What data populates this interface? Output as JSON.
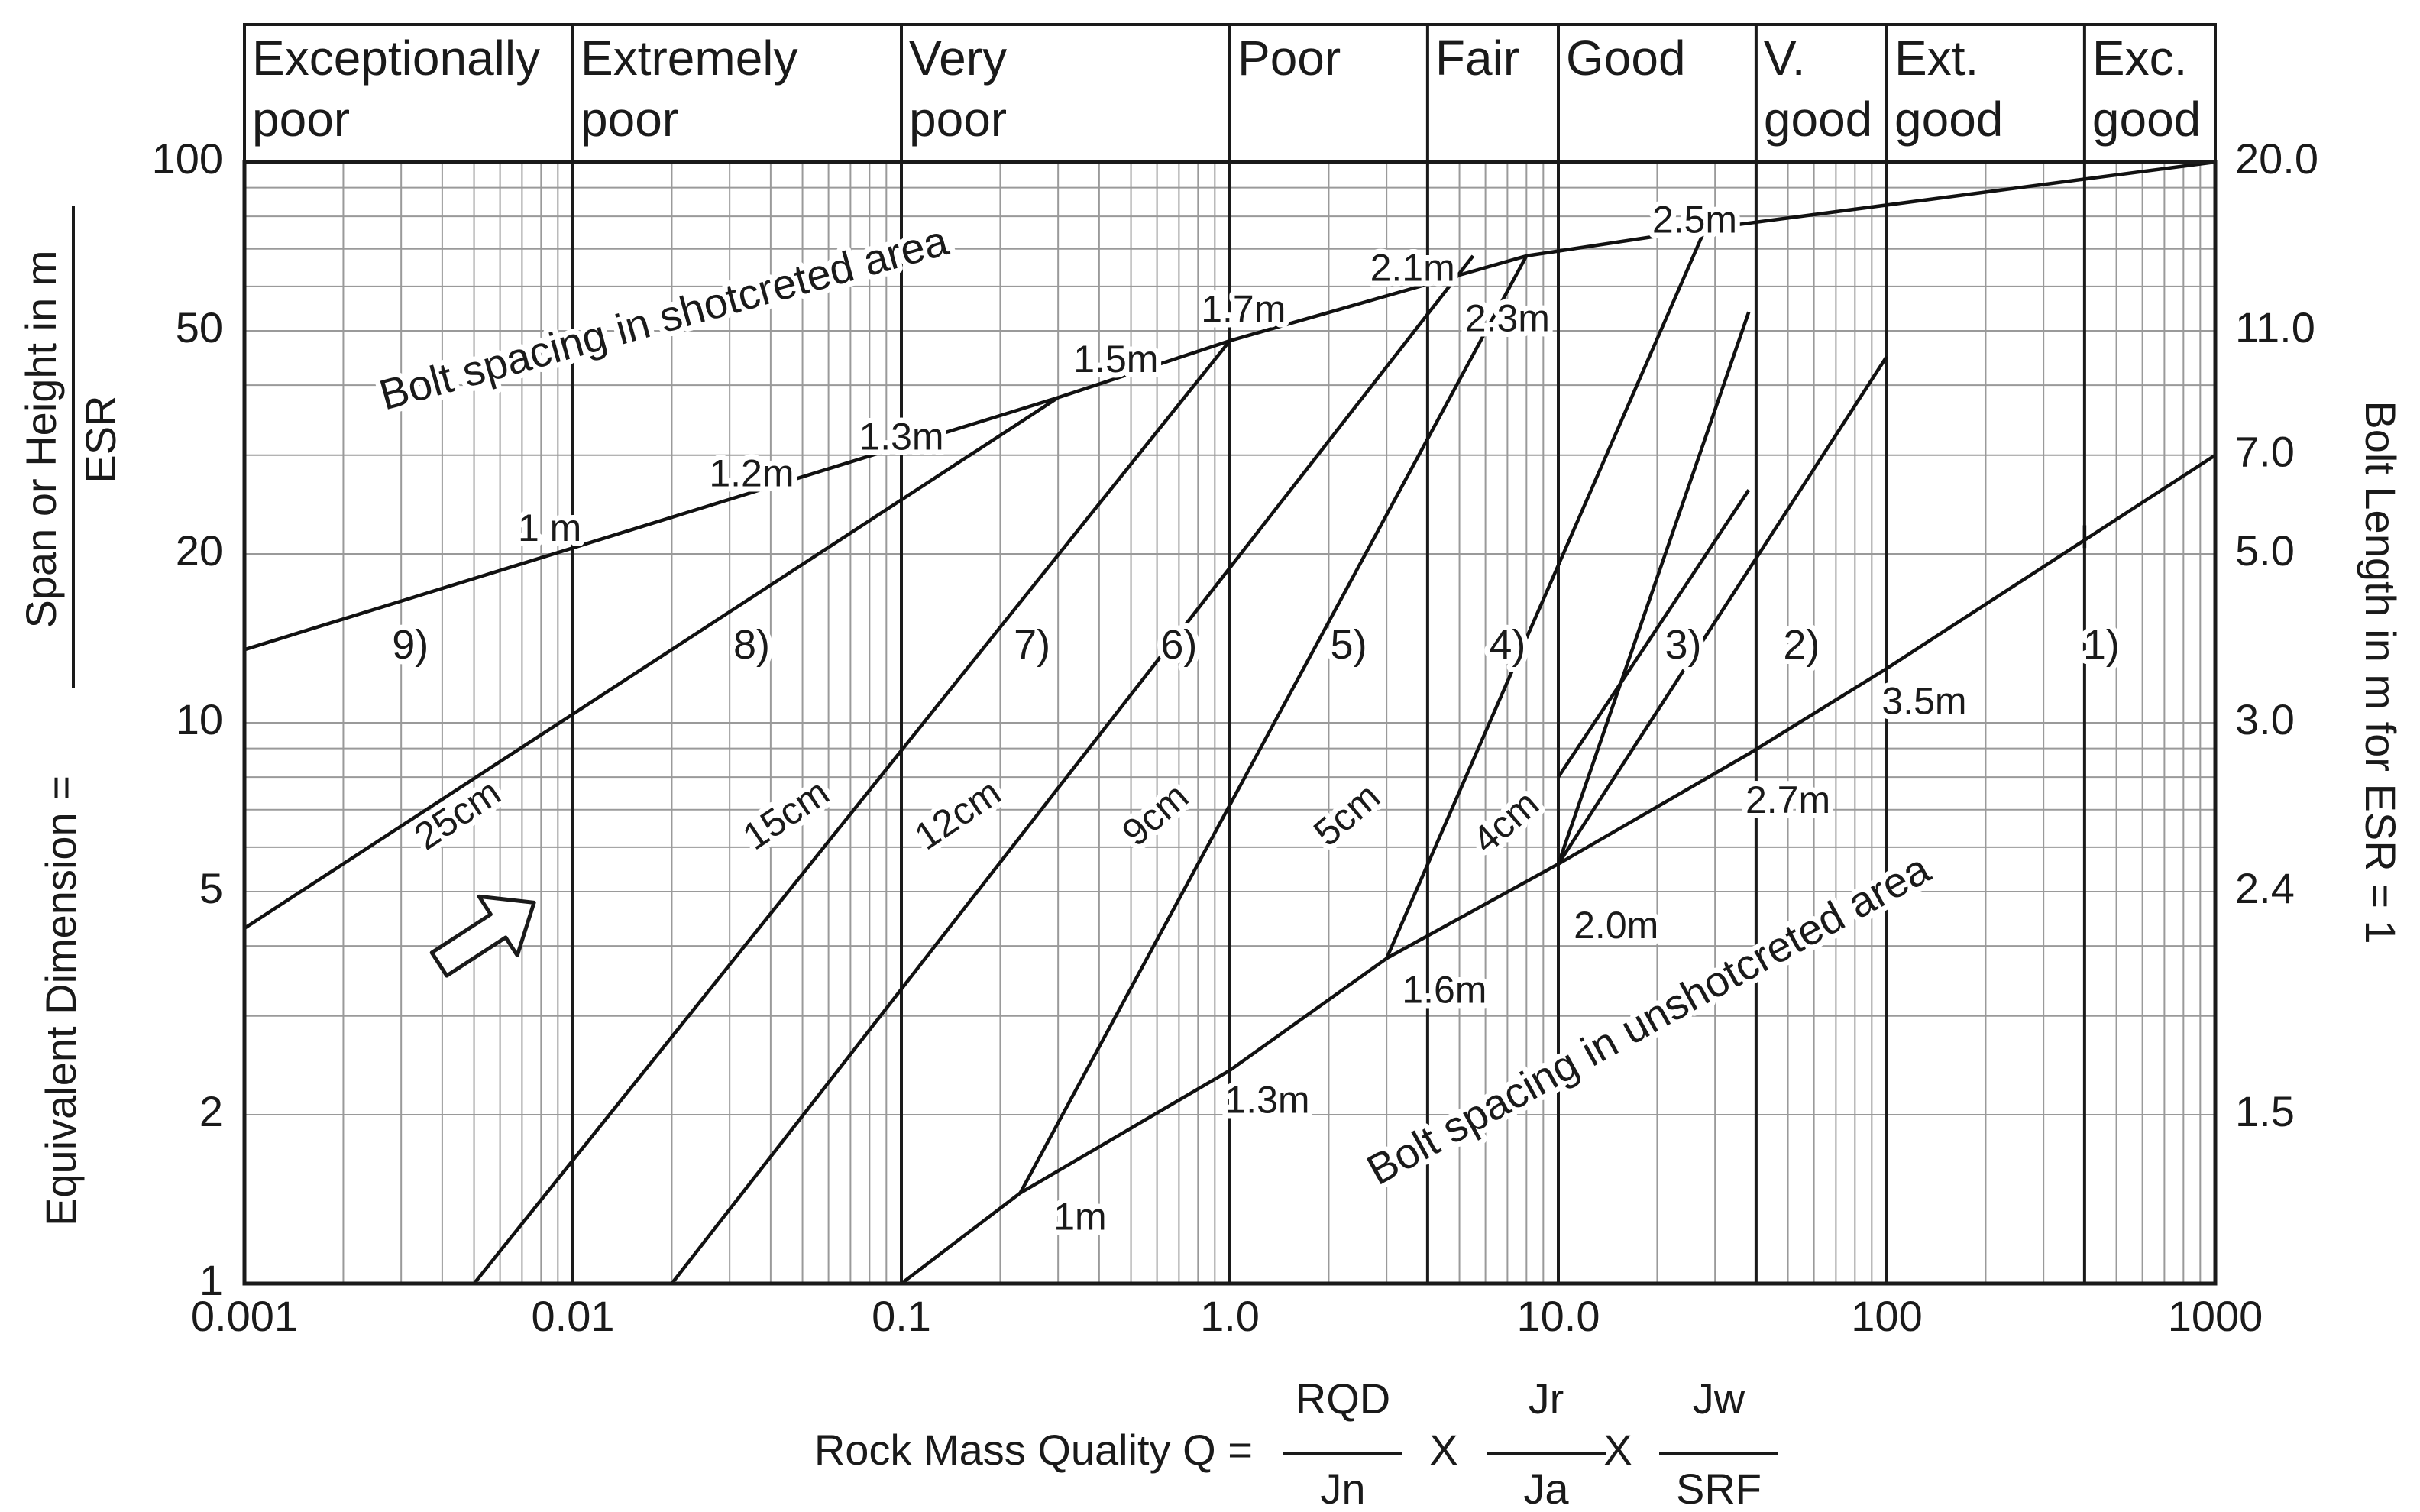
{
  "chart_data": {
    "type": "line",
    "x_scale": "log",
    "y_scale": "log",
    "xlim": [
      0.001,
      1000
    ],
    "ylim": [
      1,
      100
    ],
    "grid": true,
    "legend": "none",
    "rock_mass_classes": [
      {
        "label_line1": "Exceptionally",
        "label_line2": "poor",
        "q_min": 0.001,
        "q_max": 0.01
      },
      {
        "label_line1": "Extremely",
        "label_line2": "poor",
        "q_min": 0.01,
        "q_max": 0.1
      },
      {
        "label_line1": "Very",
        "label_line2": "poor",
        "q_min": 0.1,
        "q_max": 1.0
      },
      {
        "label_line1": "Poor",
        "label_line2": "",
        "q_min": 1.0,
        "q_max": 4.0
      },
      {
        "label_line1": "Fair",
        "label_line2": "",
        "q_min": 4.0,
        "q_max": 10.0
      },
      {
        "label_line1": "Good",
        "label_line2": "",
        "q_min": 10.0,
        "q_max": 40.0
      },
      {
        "label_line1": "V.",
        "label_line2": "good",
        "q_min": 40.0,
        "q_max": 100.0
      },
      {
        "label_line1": "Ext.",
        "label_line2": "good",
        "q_min": 100.0,
        "q_max": 400.0
      },
      {
        "label_line1": "Exc.",
        "label_line2": "good",
        "q_min": 400.0,
        "q_max": 1000.0
      }
    ],
    "x_ticks": [
      {
        "value": 0.001,
        "label": "0.001"
      },
      {
        "value": 0.01,
        "label": "0.01"
      },
      {
        "value": 0.1,
        "label": "0.1"
      },
      {
        "value": 1.0,
        "label": "1.0"
      },
      {
        "value": 10.0,
        "label": "10.0"
      },
      {
        "value": 100,
        "label": "100"
      },
      {
        "value": 1000,
        "label": "1000"
      }
    ],
    "y_ticks": [
      {
        "value": 100,
        "label": "100"
      },
      {
        "value": 50,
        "label": "50"
      },
      {
        "value": 20,
        "label": "20"
      },
      {
        "value": 10,
        "label": "10"
      },
      {
        "value": 5,
        "label": "5"
      },
      {
        "value": 2,
        "label": "2"
      },
      {
        "value": 1,
        "label": "1"
      }
    ],
    "y2_ticks": [
      {
        "value": 100,
        "label": "20.0"
      },
      {
        "value": 50,
        "label": "11.0"
      },
      {
        "value": 30,
        "label": "7.0"
      },
      {
        "value": 20,
        "label": "5.0"
      },
      {
        "value": 10,
        "label": "3.0"
      },
      {
        "value": 5,
        "label": "2.4"
      },
      {
        "value": 2,
        "label": "1.5"
      }
    ],
    "xlabel": {
      "prefix": "Rock Mass Quality Q =",
      "f1_num": "RQD",
      "f1_den": "Jn",
      "times": "X",
      "f2_num": "Jr",
      "f2_den": "Ja",
      "f3_num": "Jw",
      "f3_den": "SRF"
    },
    "ylabel": {
      "text": "Equivalent Dimension =",
      "num": "Span or Height in m",
      "den": "ESR"
    },
    "y2label": "Bolt Length in m for ESR = 1",
    "series": [
      {
        "points": [
          [
            0.001,
            13.5
          ],
          [
            0.3,
            38
          ],
          [
            1.0,
            48
          ],
          [
            8.0,
            68
          ],
          [
            28,
            76
          ],
          [
            1000,
            100
          ]
        ]
      },
      {
        "points": [
          [
            0.001,
            4.3
          ],
          [
            0.3,
            38
          ]
        ]
      },
      {
        "points": [
          [
            0.005,
            1
          ],
          [
            1.0,
            48
          ]
        ]
      },
      {
        "points": [
          [
            0.02,
            1
          ],
          [
            5.5,
            68
          ]
        ]
      },
      {
        "points": [
          [
            0.1,
            1
          ],
          [
            0.23,
            1.45
          ],
          [
            1.0,
            2.4
          ],
          [
            3.0,
            3.8
          ],
          [
            10,
            5.6
          ],
          [
            38,
            8.8
          ],
          [
            100,
            12.5
          ],
          [
            1000,
            30
          ]
        ]
      },
      {
        "points": [
          [
            0.23,
            1.45
          ],
          [
            8.0,
            68
          ]
        ]
      },
      {
        "points": [
          [
            3.0,
            3.8
          ],
          [
            28,
            76
          ]
        ]
      },
      {
        "points": [
          [
            10,
            5.6
          ],
          [
            38,
            54
          ]
        ]
      },
      {
        "points": [
          [
            10,
            5.6
          ],
          [
            100,
            45
          ]
        ]
      },
      {
        "points": [
          [
            10,
            8.0
          ],
          [
            38,
            26
          ]
        ]
      },
      {
        "points": [
          [
            400,
            20.5
          ],
          [
            400,
            22.5
          ]
        ]
      }
    ],
    "upper_label": "Bolt spacing in shotcreted area",
    "lower_label": "Bolt spacing in unshotcreted area",
    "upper_spacing_labels": [
      {
        "text": "1 m",
        "q": 0.0085,
        "e": 22
      },
      {
        "text": "1.2m",
        "q": 0.035,
        "e": 27.5
      },
      {
        "text": "1.3m",
        "q": 0.1,
        "e": 32
      },
      {
        "text": "1.5m",
        "q": 0.45,
        "e": 44
      },
      {
        "text": "1.7m",
        "q": 1.1,
        "e": 54
      },
      {
        "text": "2.1m",
        "q": 3.6,
        "e": 64
      },
      {
        "text": "2.3m",
        "q": 7.0,
        "e": 52
      },
      {
        "text": "2.5m",
        "q": 26,
        "e": 78
      }
    ],
    "lower_spacing_labels": [
      {
        "text": "1m",
        "q": 0.35,
        "e": 1.3
      },
      {
        "text": "1.3m",
        "q": 1.3,
        "e": 2.1
      },
      {
        "text": "1.6m",
        "q": 4.5,
        "e": 3.3
      },
      {
        "text": "2.0m",
        "q": 15,
        "e": 4.3
      },
      {
        "text": "2.7m",
        "q": 50,
        "e": 7.2
      },
      {
        "text": "3.5m",
        "q": 130,
        "e": 10.8
      }
    ],
    "shotcrete_labels": [
      {
        "text": "25cm",
        "q": 0.0045,
        "e": 6.8,
        "angle": -34
      },
      {
        "text": "15cm",
        "q": 0.045,
        "e": 6.8,
        "angle": -34
      },
      {
        "text": "12cm",
        "q": 0.15,
        "e": 6.8,
        "angle": -34
      },
      {
        "text": "9cm",
        "q": 0.6,
        "e": 6.8,
        "angle": -41
      },
      {
        "text": "5cm",
        "q": 2.3,
        "e": 6.8,
        "angle": -41
      },
      {
        "text": "4cm",
        "q": 7.0,
        "e": 6.6,
        "angle": -41
      }
    ],
    "category_labels": [
      {
        "text": "9)",
        "q": 0.0032,
        "e": 13.6
      },
      {
        "text": "8)",
        "q": 0.035,
        "e": 13.6
      },
      {
        "text": "7)",
        "q": 0.25,
        "e": 13.6
      },
      {
        "text": "6)",
        "q": 0.7,
        "e": 13.6
      },
      {
        "text": "5)",
        "q": 2.3,
        "e": 13.6
      },
      {
        "text": "4)",
        "q": 7.0,
        "e": 13.6
      },
      {
        "text": "3)",
        "q": 24,
        "e": 13.6
      },
      {
        "text": "2)",
        "q": 55,
        "e": 13.6
      },
      {
        "text": "1)",
        "q": 450,
        "e": 13.6
      }
    ]
  }
}
